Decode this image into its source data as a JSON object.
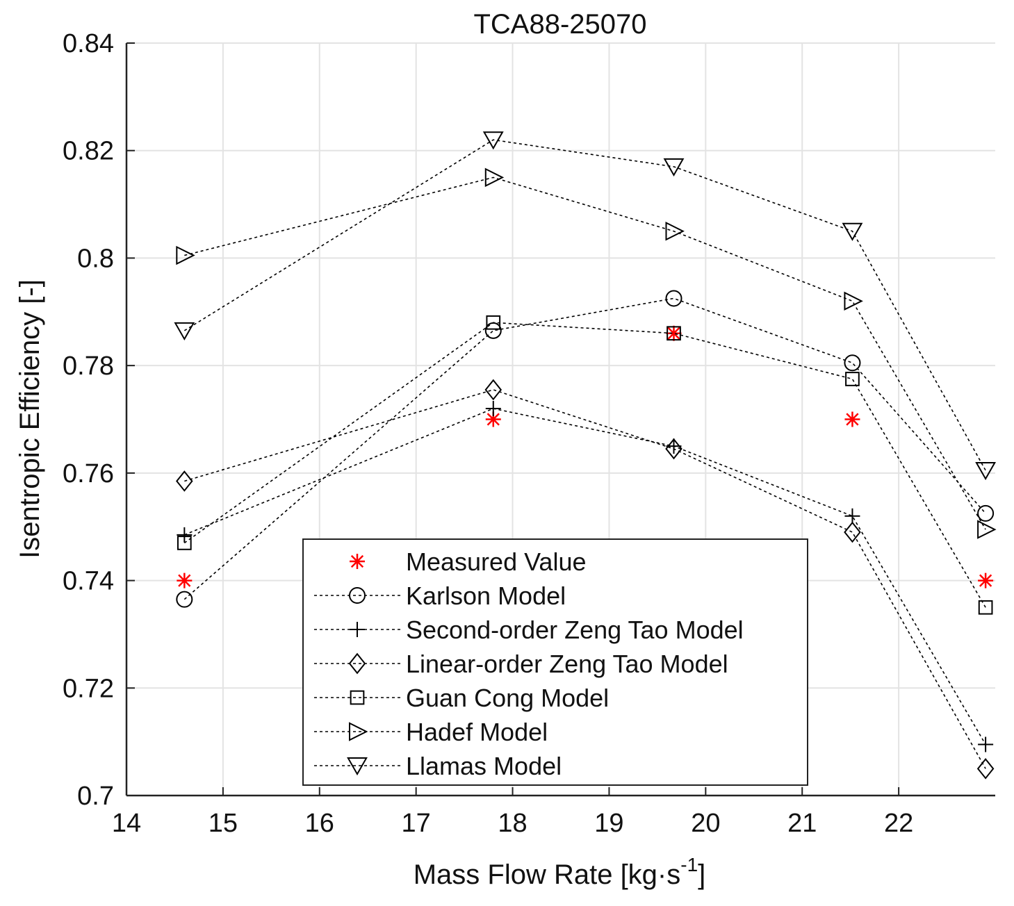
{
  "chart_data": {
    "type": "line",
    "title": "TCA88-25070",
    "xlabel": "Mass Flow Rate [kg·s",
    "xlabel_superscript": "-1",
    "xlabel_suffix": "]",
    "ylabel": "Isentropic Efficiency [-]",
    "xlim": [
      14,
      23
    ],
    "ylim": [
      0.7,
      0.84
    ],
    "xticks": [
      14,
      15,
      16,
      17,
      18,
      19,
      20,
      21,
      22
    ],
    "xtick_labels": [
      "14",
      "15",
      "16",
      "17",
      "18",
      "19",
      "20",
      "21",
      "22"
    ],
    "yticks": [
      0.7,
      0.72,
      0.74,
      0.76,
      0.78,
      0.8,
      0.82,
      0.84
    ],
    "ytick_labels": [
      "0.7",
      "0.72",
      "0.74",
      "0.76",
      "0.78",
      "0.8",
      "0.82",
      "0.84"
    ],
    "grid": true,
    "legend_position": "bottom-center",
    "x": [
      14.6,
      17.8,
      19.67,
      21.52,
      22.9
    ],
    "series": [
      {
        "name": "Measured Value",
        "marker": "asterisk",
        "line": "none",
        "color": "#ff0000",
        "values": [
          0.74,
          0.77,
          0.786,
          0.77,
          0.74
        ]
      },
      {
        "name": "Karlson Model",
        "marker": "circle",
        "line": "dashed",
        "color": "#000000",
        "values": [
          0.7365,
          0.7865,
          0.7925,
          0.7805,
          0.7525
        ]
      },
      {
        "name": "Second-order Zeng Tao Model",
        "marker": "plus",
        "line": "dashed",
        "color": "#000000",
        "values": [
          0.7485,
          0.772,
          0.765,
          0.752,
          0.7095
        ]
      },
      {
        "name": "Linear-order Zeng Tao Model",
        "marker": "diamond",
        "line": "dashed",
        "color": "#000000",
        "values": [
          0.7585,
          0.7755,
          0.7645,
          0.749,
          0.705
        ]
      },
      {
        "name": "Guan Cong Model",
        "marker": "square",
        "line": "dashed",
        "color": "#000000",
        "values": [
          0.747,
          0.788,
          0.786,
          0.7775,
          0.735
        ]
      },
      {
        "name": "Hadef Model",
        "marker": "triangle-right",
        "line": "dashed",
        "color": "#000000",
        "values": [
          0.8005,
          0.815,
          0.805,
          0.792,
          0.7495
        ]
      },
      {
        "name": "Llamas Model",
        "marker": "triangle-down",
        "line": "dashed",
        "color": "#000000",
        "values": [
          0.7865,
          0.822,
          0.817,
          0.805,
          0.7605
        ]
      }
    ]
  }
}
